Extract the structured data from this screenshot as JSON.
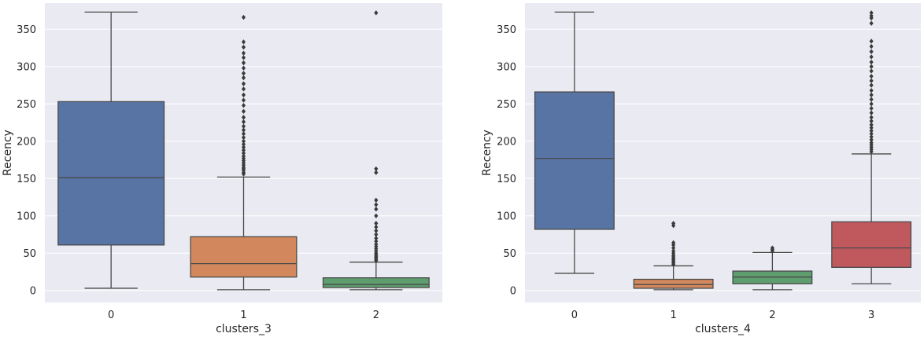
{
  "chart_data": [
    {
      "type": "box",
      "xlabel": "clusters_3",
      "ylabel": "Recency",
      "ylim": [
        -16,
        385
      ],
      "yticks": [
        0,
        50,
        100,
        150,
        200,
        250,
        300,
        350
      ],
      "categories": [
        "0",
        "1",
        "2"
      ],
      "boxes": [
        {
          "category": "0",
          "whisker_low": 3,
          "q1": 61,
          "median": 151,
          "q3": 253,
          "whisker_high": 373,
          "color": "#5874a5",
          "outliers": []
        },
        {
          "category": "1",
          "whisker_low": 1,
          "q1": 18,
          "median": 36,
          "q3": 72,
          "whisker_high": 152,
          "color": "#d2885c",
          "outliers": [
            156,
            158,
            161,
            163,
            165,
            168,
            171,
            174,
            177,
            180,
            184,
            188,
            192,
            196,
            200,
            205,
            210,
            215,
            220,
            226,
            232,
            240,
            248,
            255,
            262,
            270,
            277,
            285,
            291,
            298,
            305,
            312,
            318,
            326,
            333,
            366
          ]
        },
        {
          "category": "2",
          "whisker_low": 1,
          "q1": 4,
          "median": 8,
          "q3": 17,
          "whisker_high": 38,
          "color": "#5e9e6e",
          "outliers": [
            40,
            42,
            44,
            46,
            48,
            50,
            53,
            56,
            59,
            62,
            66,
            70,
            75,
            80,
            85,
            90,
            100,
            109,
            115,
            121,
            158,
            163,
            372
          ]
        }
      ]
    },
    {
      "type": "box",
      "xlabel": "clusters_4",
      "ylabel": "Recency",
      "ylim": [
        -16,
        385
      ],
      "yticks": [
        0,
        50,
        100,
        150,
        200,
        250,
        300,
        350
      ],
      "categories": [
        "0",
        "1",
        "2",
        "3"
      ],
      "boxes": [
        {
          "category": "0",
          "whisker_low": 23,
          "q1": 82,
          "median": 177,
          "q3": 266,
          "whisker_high": 373,
          "color": "#5874a5",
          "outliers": []
        },
        {
          "category": "1",
          "whisker_low": 1,
          "q1": 3,
          "median": 8,
          "q3": 15,
          "whisker_high": 33,
          "color": "#d2885c",
          "outliers": [
            35,
            37,
            39,
            41,
            43,
            45,
            47,
            50,
            53,
            57,
            61,
            64,
            87,
            90
          ]
        },
        {
          "category": "2",
          "whisker_low": 1,
          "q1": 9,
          "median": 18,
          "q3": 26,
          "whisker_high": 51,
          "color": "#5e9e6e",
          "outliers": [
            53,
            55,
            57
          ]
        },
        {
          "category": "3",
          "whisker_low": 9,
          "q1": 31,
          "median": 57,
          "q3": 92,
          "whisker_high": 183,
          "color": "#c0595e",
          "outliers": [
            186,
            189,
            192,
            195,
            198,
            202,
            206,
            210,
            214,
            218,
            222,
            227,
            232,
            238,
            244,
            250,
            256,
            262,
            268,
            275,
            281,
            287,
            294,
            300,
            306,
            313,
            320,
            327,
            334,
            358,
            365,
            368,
            372
          ]
        }
      ]
    }
  ]
}
